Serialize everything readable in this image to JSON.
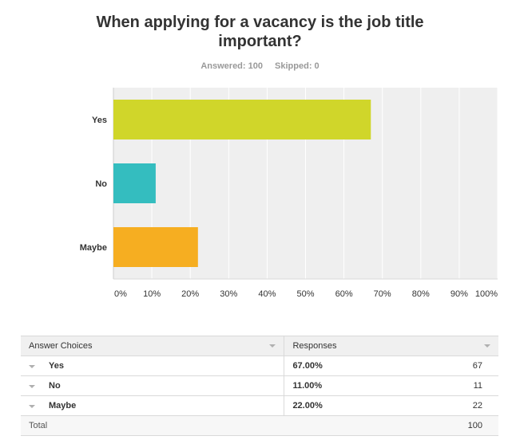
{
  "question": {
    "title": "When applying for a vacancy is the job title important?",
    "answered_label": "Answered: 100",
    "skipped_label": "Skipped: 0"
  },
  "chart_data": {
    "type": "bar",
    "orientation": "horizontal",
    "title": "When applying for a vacancy is the job title important?",
    "categories": [
      "Yes",
      "No",
      "Maybe"
    ],
    "values": [
      67,
      11,
      22
    ],
    "colors": [
      "#d0d62a",
      "#34bdbf",
      "#f6ae21"
    ],
    "xlim": [
      0,
      100
    ],
    "xticks": [
      "0%",
      "10%",
      "20%",
      "30%",
      "40%",
      "50%",
      "60%",
      "70%",
      "80%",
      "90%",
      "100%"
    ],
    "grid": true
  },
  "table": {
    "headers": {
      "choices": "Answer Choices",
      "responses": "Responses"
    },
    "rows": [
      {
        "choice": "Yes",
        "percent": "67.00%",
        "count": "67"
      },
      {
        "choice": "No",
        "percent": "11.00%",
        "count": "11"
      },
      {
        "choice": "Maybe",
        "percent": "22.00%",
        "count": "22"
      }
    ],
    "total": {
      "label": "Total",
      "count": "100"
    }
  }
}
